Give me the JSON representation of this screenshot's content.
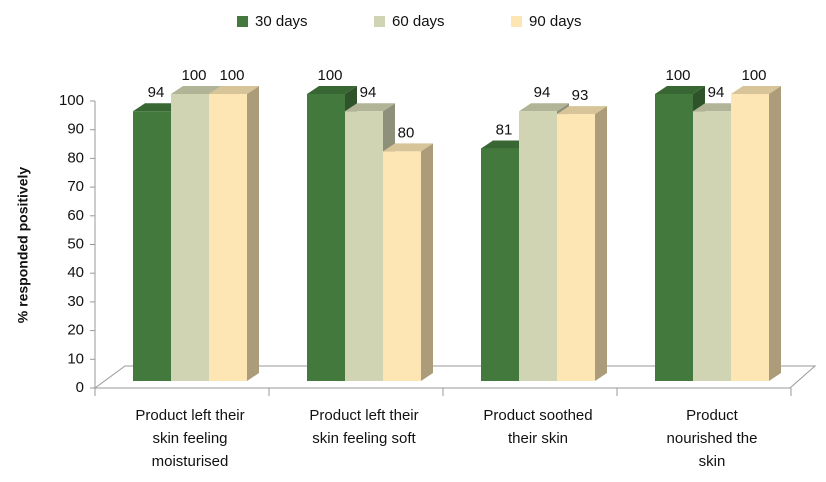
{
  "chart_data": {
    "type": "bar3d",
    "y_axis_label": "% responded positively",
    "categories": [
      "Product left their\nskin feeling\nmoisturised",
      "Product left their\nskin feeling soft",
      "Product soothed\ntheir skin",
      "Product\nnourished the\nskin"
    ],
    "series": [
      {
        "name": "30 days",
        "color": "#43793c",
        "values": [
          94,
          100,
          81,
          100
        ]
      },
      {
        "name": "60 days",
        "color": "#d1d4b2",
        "values": [
          100,
          94,
          94,
          94
        ]
      },
      {
        "name": "90 days",
        "color": "#fde6b3",
        "values": [
          100,
          80,
          93,
          100
        ]
      }
    ],
    "ylim": [
      0,
      100
    ],
    "yticks": [
      0,
      10,
      20,
      30,
      40,
      50,
      60,
      70,
      80,
      90,
      100
    ],
    "legend": "top"
  }
}
